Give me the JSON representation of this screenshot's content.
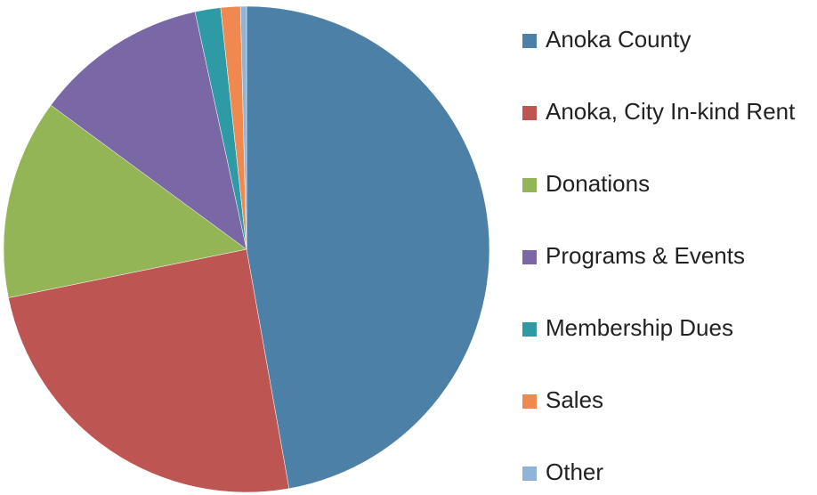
{
  "chart_data": {
    "type": "pie",
    "categories": [
      "Anoka County",
      "Anoka, City In-kind Rent",
      "Donations",
      "Programs & Events",
      "Membership Dues",
      "Sales",
      "Other"
    ],
    "values": [
      47.2,
      24.6,
      13.3,
      11.5,
      1.7,
      1.3,
      0.4
    ],
    "colors": [
      "#4d80a6",
      "#bd5552",
      "#94b556",
      "#7a68a6",
      "#2e9aa5",
      "#f0894f",
      "#8fb4d9"
    ],
    "start_angle": 0,
    "direction": "clockwise",
    "legend": "right"
  }
}
